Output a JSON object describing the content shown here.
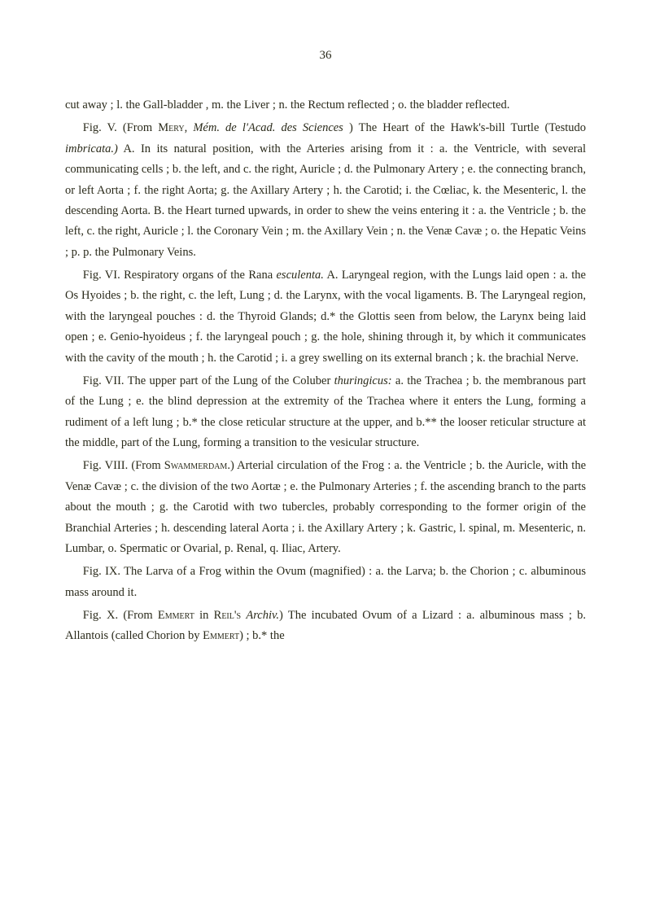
{
  "page_number": "36",
  "paragraphs": [
    {
      "indent": false,
      "html": "cut away ; l. the Gall-bladder , m. the Liver ; n. the Rectum reflected ; o. the bladder reflected."
    },
    {
      "indent": true,
      "html": "Fig. V. (From <span class=\"smallcaps\">Mery</span>, <span class=\"italic\">Mém. de l'Acad. des Sciences</span> ) The Heart of the Hawk's-bill Turtle (Testudo <span class=\"italic\">imbricata.)</span> A. In its natural position, with the Arteries arising from it : a. the Ventricle, with several communicating cells ; b. the left, and c. the right, Auricle ; d. the Pulmonary Artery ; e. the connecting branch, or left Aorta ; f. the right Aorta; g. the Axillary Artery ; h. the Carotid; i. the Cœliac, k. the Mesenteric, l. the descending Aorta. B. the Heart turned upwards, in order to shew the veins entering it : a. the Ventricle ; b. the left, c. the right, Auricle ; l. the Coronary Vein ; m. the Axillary Vein ; n. the Venæ Cavæ ; o. the Hepatic Veins ; p. p. the Pulmonary Veins."
    },
    {
      "indent": true,
      "html": "Fig. VI. Respiratory organs of the Rana <span class=\"italic\">esculenta.</span> A. Laryngeal region, with the Lungs laid open : a. the Os Hyoides ; b. the right, c. the left, Lung ; d. the Larynx, with the vocal ligaments. B. The Laryngeal region, with the laryngeal pouches : d. the Thyroid Glands; d.* the Glottis seen from below, the Larynx being laid open ; e. Genio-hyoideus ; f. the laryngeal pouch ; g. the hole, shining through it, by which it communicates with the cavity of the mouth ; h. the Carotid ; i. a grey swelling on its external branch ; k. the brachial Nerve."
    },
    {
      "indent": true,
      "html": "Fig. VII. The upper part of the Lung of the Coluber <span class=\"italic\">thuringicus:</span> a. the Trachea ; b. the membranous part of the Lung ; e. the blind depression at the extremity of the Trachea where it enters the Lung, forming a rudiment of a left lung ; b.* the close reticular structure at the upper, and b.** the looser reticular structure at the middle, part of the Lung, forming a transition to the vesicular structure."
    },
    {
      "indent": true,
      "html": "Fig. VIII. (From <span class=\"smallcaps\">Swammerdam</span>.) Arterial circulation of the Frog : a. the Ventricle ; b. the Auricle, with the Venæ Cavæ ; c. the division of the two Aortæ ; e. the Pulmonary Arteries ; f. the ascending branch to the parts about the mouth ; g. the Carotid with two tubercles, probably corresponding to the former origin of the Branchial Arteries ; h. descending lateral Aorta ; i. the Axillary Artery ; k. Gastric, l. spinal, m. Mesenteric, n. Lumbar, o. Spermatic or Ovarial, p. Renal, q. Iliac, Artery."
    },
    {
      "indent": true,
      "html": "Fig. IX. The Larva of a Frog within the Ovum (magnified) : a. the Larva; b. the Chorion ; c. albuminous mass around it."
    },
    {
      "indent": true,
      "html": "Fig. X. (From <span class=\"smallcaps\">Emmert</span> in <span class=\"smallcaps\">Reil's</span> <span class=\"italic\">Archiv.</span>) The incubated Ovum of a Lizard : a. albuminous mass ; b. Allantois (called Chorion by <span class=\"smallcaps\">Emmert</span>) ; b.* the"
    }
  ]
}
